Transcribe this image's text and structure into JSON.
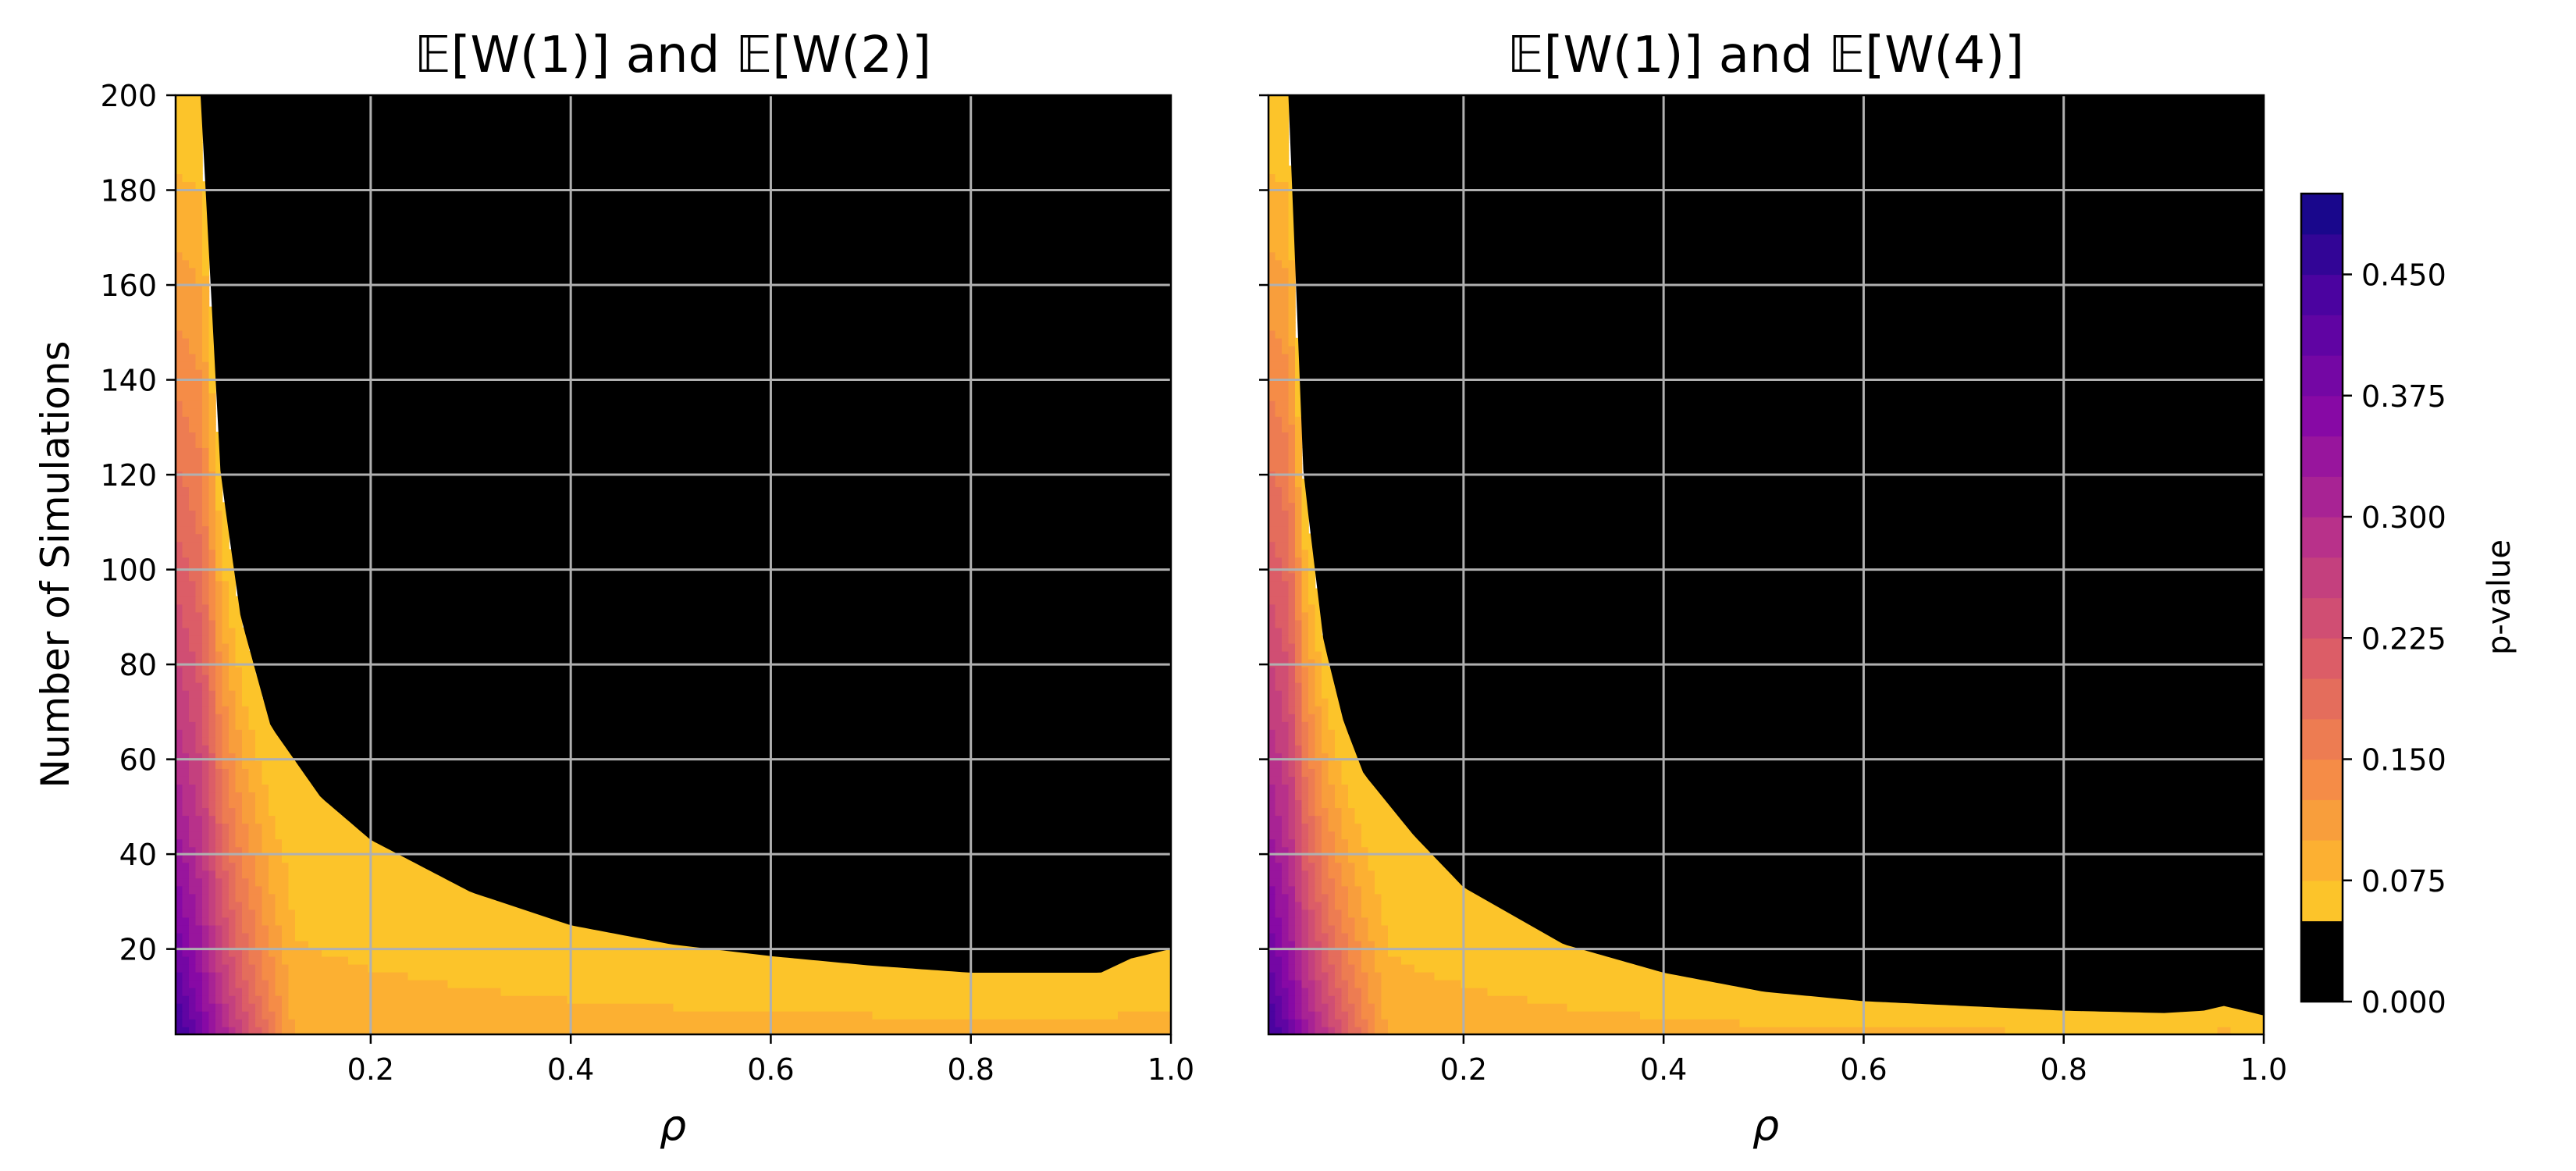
{
  "chart_data": [
    {
      "type": "heatmap",
      "subtype": "filled-contour",
      "title": "𝔼[W(1)] and 𝔼[W(2)]",
      "xlabel": "ρ",
      "ylabel": "Number of Simulations",
      "xlim": [
        0.005,
        1.0
      ],
      "ylim": [
        2,
        200
      ],
      "xticks": [
        0.2,
        0.4,
        0.6,
        0.8,
        1.0
      ],
      "xtick_labels": [
        "0.2",
        "0.4",
        "0.6",
        "0.8",
        "1.0"
      ],
      "yticks": [
        20,
        40,
        60,
        80,
        100,
        120,
        140,
        160,
        180,
        200
      ],
      "ytick_labels": [
        "20",
        "40",
        "60",
        "80",
        "100",
        "120",
        "140",
        "160",
        "180",
        "200"
      ],
      "grid": true,
      "significance_boundary_p_0_05": {
        "x": [
          0.03,
          0.05,
          0.07,
          0.1,
          0.15,
          0.2,
          0.3,
          0.4,
          0.5,
          0.6,
          0.7,
          0.8,
          0.9,
          0.93,
          0.96,
          1.0
        ],
        "y": [
          200,
          120,
          90,
          67,
          52,
          43,
          32,
          25,
          21,
          18.5,
          16.5,
          15,
          15,
          15,
          18,
          20
        ]
      }
    },
    {
      "type": "heatmap",
      "subtype": "filled-contour",
      "title": "𝔼[W(1)] and 𝔼[W(4)]",
      "xlabel": "ρ",
      "ylabel": "",
      "xlim": [
        0.005,
        1.0
      ],
      "ylim": [
        2,
        200
      ],
      "xticks": [
        0.2,
        0.4,
        0.6,
        0.8,
        1.0
      ],
      "xtick_labels": [
        "0.2",
        "0.4",
        "0.6",
        "0.8",
        "1.0"
      ],
      "yticks": [
        20,
        40,
        60,
        80,
        100,
        120,
        140,
        160,
        180,
        200
      ],
      "grid": true,
      "significance_boundary_p_0_05": {
        "x": [
          0.025,
          0.04,
          0.06,
          0.08,
          0.1,
          0.15,
          0.2,
          0.3,
          0.4,
          0.5,
          0.6,
          0.7,
          0.8,
          0.9,
          0.94,
          0.96,
          0.98,
          1.0
        ],
        "y": [
          200,
          120,
          85,
          68,
          57,
          44,
          33,
          21,
          15,
          11,
          9,
          8,
          7,
          6.5,
          7,
          8,
          7,
          6
        ]
      }
    }
  ],
  "colorbar": {
    "label": "p-value",
    "colormap": "plasma",
    "range": [
      0.0,
      0.5
    ],
    "levels": 20,
    "ticks": [
      0.0,
      0.075,
      0.15,
      0.225,
      0.3,
      0.375,
      0.45
    ],
    "tick_labels": [
      "0.000",
      "0.075",
      "0.150",
      "0.225",
      "0.300",
      "0.375",
      "0.450"
    ],
    "masked_below": 0.05,
    "masked_color": "#000000"
  }
}
